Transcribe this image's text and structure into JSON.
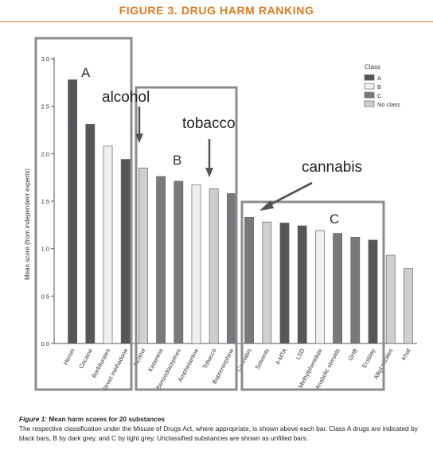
{
  "header": {
    "title": "FIGURE 3. DRUG HARM RANKING"
  },
  "caption": {
    "figure_label": "Figure 1:",
    "title": "Mean harm scores for 20 substances",
    "body": "The respective classification under the Misuse of Drugs Act, where appropriate, is shown above each bar. Class A drugs are indicated by black bars, B by dark grey, and C by light grey. Unclassified substances are shown as unfilled bars."
  },
  "colors": {
    "A": "#55555a",
    "B": "#f0f0f0",
    "C": "#78787d",
    "none": "#cfcfd2",
    "header": "#e07a1f",
    "box": "#8c8c8c",
    "arrow": "#555555"
  },
  "annotations": {
    "box_a": "A",
    "box_b": "B",
    "box_c": "C",
    "alcohol": "alcohol",
    "tobacco": "tobacco",
    "cannabis": "cannabis"
  },
  "chart_data": {
    "type": "bar",
    "ylabel": "Mean score (from independent experts)",
    "ylim": [
      0,
      3.0
    ],
    "yticks": [
      "0.0",
      "0.5",
      "1.0",
      "1.5",
      "2.0",
      "2.5",
      "3.0"
    ],
    "legend": {
      "title": "Class",
      "position": "top-right",
      "entries": [
        {
          "label": "A",
          "class": "A"
        },
        {
          "label": "B",
          "class": "B"
        },
        {
          "label": "C",
          "class": "C"
        },
        {
          "label": "No class",
          "class": "none"
        }
      ]
    },
    "categories": [
      "Heroin",
      "Cocaine",
      "Barbiturates",
      "Street methadone",
      "Alcohol",
      "Ketamine",
      "Benzodiazepines",
      "Amphetamine",
      "Tobacco",
      "Buprenorphine",
      "Cannabis",
      "Solvents",
      "4-MTA",
      "LSD",
      "Methylphenidate",
      "Anabolic steroids",
      "GHB",
      "Ecstasy",
      "Alkyl nitrates",
      "Khat"
    ],
    "values": [
      2.78,
      2.31,
      2.08,
      1.94,
      1.85,
      1.76,
      1.71,
      1.67,
      1.63,
      1.58,
      1.33,
      1.28,
      1.27,
      1.24,
      1.19,
      1.16,
      1.12,
      1.09,
      0.93,
      0.79
    ],
    "classes": [
      "A",
      "A",
      "B",
      "A",
      "none",
      "C",
      "C",
      "B",
      "none",
      "C",
      "C",
      "none",
      "A",
      "A",
      "B",
      "C",
      "C",
      "A",
      "none",
      "none"
    ]
  }
}
